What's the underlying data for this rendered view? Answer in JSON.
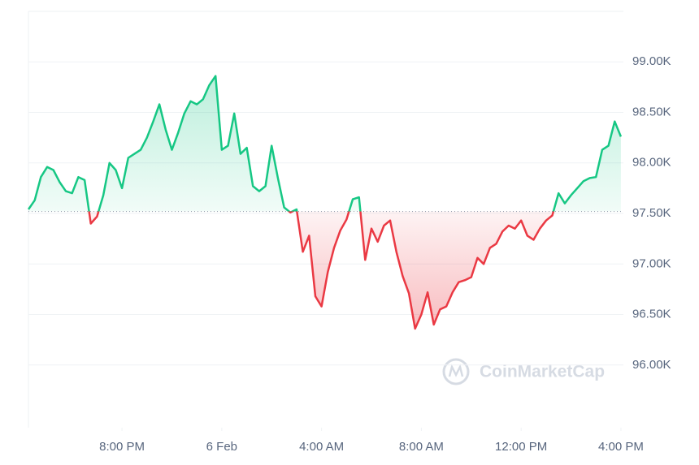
{
  "chart_data": {
    "type": "line",
    "x": [
      16.25,
      16.5,
      16.75,
      17,
      17.25,
      17.5,
      17.75,
      18,
      18.25,
      18.5,
      18.75,
      19,
      19.25,
      19.5,
      19.75,
      20,
      20.25,
      20.5,
      20.75,
      21,
      21.25,
      21.5,
      21.75,
      22,
      22.25,
      22.5,
      22.75,
      23,
      23.25,
      23.5,
      23.75,
      24,
      24.25,
      24.5,
      24.75,
      25,
      25.25,
      25.5,
      25.75,
      26,
      26.25,
      26.5,
      26.75,
      27,
      27.25,
      27.5,
      27.75,
      28,
      28.25,
      28.5,
      28.75,
      29,
      29.25,
      29.5,
      29.75,
      30,
      30.25,
      30.5,
      30.75,
      31,
      31.25,
      31.5,
      31.75,
      32,
      32.25,
      32.5,
      32.75,
      33,
      33.25,
      33.5,
      33.75,
      34,
      34.25,
      34.5,
      34.75,
      35,
      35.25,
      35.5,
      35.75,
      36,
      36.25,
      36.5,
      36.75,
      37,
      37.25,
      37.5,
      37.75,
      38,
      38.25,
      38.5,
      38.75,
      39,
      39.25,
      39.5,
      39.75,
      40
    ],
    "values": [
      97540,
      97630,
      97860,
      97960,
      97930,
      97810,
      97720,
      97700,
      97860,
      97830,
      97400,
      97470,
      97680,
      98000,
      97930,
      97750,
      98050,
      98090,
      98130,
      98250,
      98410,
      98580,
      98330,
      98130,
      98300,
      98490,
      98610,
      98580,
      98630,
      98770,
      98860,
      98130,
      98170,
      98490,
      98090,
      98150,
      97770,
      97720,
      97770,
      98170,
      97850,
      97560,
      97510,
      97540,
      97120,
      97280,
      96680,
      96580,
      96920,
      97160,
      97330,
      97440,
      97640,
      97660,
      97040,
      97350,
      97220,
      97380,
      97430,
      97120,
      96880,
      96710,
      96360,
      96500,
      96720,
      96400,
      96550,
      96580,
      96720,
      96820,
      96840,
      96870,
      97060,
      97000,
      97160,
      97200,
      97320,
      97380,
      97350,
      97430,
      97280,
      97240,
      97350,
      97430,
      97480,
      97700,
      97600,
      97680,
      97750,
      97820,
      97850,
      97860,
      98130,
      98170,
      98410,
      98260
    ],
    "baseline": 97520,
    "color_above": "#16c784",
    "color_below": "#ea3943",
    "xlim": [
      16.25,
      40.1
    ],
    "xticks": [
      {
        "value": 20,
        "label": "8:00 PM"
      },
      {
        "value": 24,
        "label": "6 Feb"
      },
      {
        "value": 28,
        "label": "4:00 AM"
      },
      {
        "value": 32,
        "label": "8:00 AM"
      },
      {
        "value": 36,
        "label": "12:00 PM"
      },
      {
        "value": 40,
        "label": "4:00 PM"
      }
    ],
    "ylim": [
      95380,
      99500
    ],
    "yticks": [
      {
        "value": 96000,
        "label": "96.00K"
      },
      {
        "value": 96500,
        "label": "96.50K"
      },
      {
        "value": 97000,
        "label": "97.00K"
      },
      {
        "value": 97500,
        "label": "97.50K"
      },
      {
        "value": 98000,
        "label": "98.00K"
      },
      {
        "value": 98500,
        "label": "98.50K"
      },
      {
        "value": 99000,
        "label": "99.00K"
      }
    ],
    "grid": true,
    "watermark": "CoinMarketCap"
  }
}
